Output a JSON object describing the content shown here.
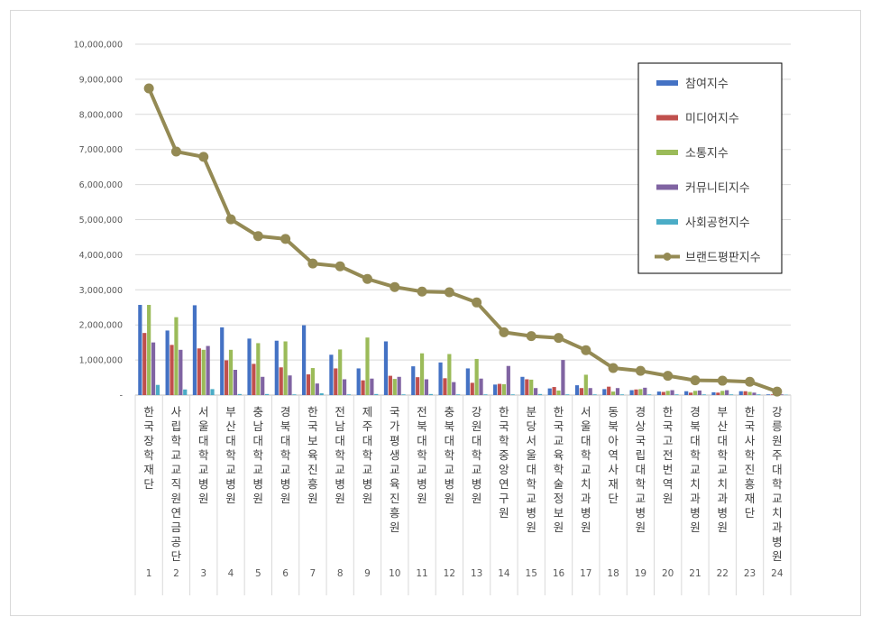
{
  "chart_data": {
    "type": "bar",
    "title": "",
    "xlabel": "",
    "ylabel": "",
    "ylim": [
      0,
      10000000
    ],
    "y_ticks": [
      "-",
      "1,000,000",
      "2,000,000",
      "3,000,000",
      "4,000,000",
      "5,000,000",
      "6,000,000",
      "7,000,000",
      "8,000,000",
      "9,000,000",
      "10,000,000"
    ],
    "grid": true,
    "legend_position": "top-right",
    "categories": [
      {
        "rank": "1",
        "name": "한국장학재단"
      },
      {
        "rank": "2",
        "name": "사립학교교직원연금공단"
      },
      {
        "rank": "3",
        "name": "서울대학교병원"
      },
      {
        "rank": "4",
        "name": "부산대학교병원"
      },
      {
        "rank": "5",
        "name": "충남대학교병원"
      },
      {
        "rank": "6",
        "name": "경북대학교병원"
      },
      {
        "rank": "7",
        "name": "한국보육진흥원"
      },
      {
        "rank": "8",
        "name": "전남대학교병원"
      },
      {
        "rank": "9",
        "name": "제주대학교병원"
      },
      {
        "rank": "10",
        "name": "국가평생교육진흥원"
      },
      {
        "rank": "11",
        "name": "전북대학교병원"
      },
      {
        "rank": "12",
        "name": "충북대학교병원"
      },
      {
        "rank": "13",
        "name": "강원대학교병원"
      },
      {
        "rank": "14",
        "name": "한국학중앙연구원"
      },
      {
        "rank": "15",
        "name": "분당서울대학교병원"
      },
      {
        "rank": "16",
        "name": "한국교육학술정보원"
      },
      {
        "rank": "17",
        "name": "서울대학교치과병원"
      },
      {
        "rank": "18",
        "name": "동북아역사재단"
      },
      {
        "rank": "19",
        "name": "경상국립대학교병원"
      },
      {
        "rank": "20",
        "name": "한국고전번역원"
      },
      {
        "rank": "21",
        "name": "경북대학교치과병원"
      },
      {
        "rank": "22",
        "name": "부산대학교치과병원"
      },
      {
        "rank": "23",
        "name": "한국사학진흥재단"
      },
      {
        "rank": "24",
        "name": "강릉원주대학교치과병원"
      }
    ],
    "series": [
      {
        "name": "참여지수",
        "type": "bar",
        "color": "#4472c4",
        "values": [
          2570000,
          1840000,
          2560000,
          1930000,
          1610000,
          1550000,
          1990000,
          1150000,
          760000,
          1530000,
          820000,
          930000,
          760000,
          300000,
          520000,
          190000,
          280000,
          170000,
          140000,
          100000,
          110000,
          80000,
          110000,
          20000
        ]
      },
      {
        "name": "미디어지수",
        "type": "bar",
        "color": "#c0504d",
        "values": [
          1770000,
          1430000,
          1330000,
          990000,
          890000,
          790000,
          590000,
          760000,
          420000,
          550000,
          510000,
          480000,
          350000,
          320000,
          450000,
          230000,
          200000,
          240000,
          160000,
          90000,
          70000,
          70000,
          110000,
          20000
        ]
      },
      {
        "name": "소통지수",
        "type": "bar",
        "color": "#9bbb59",
        "values": [
          2570000,
          2220000,
          1290000,
          1290000,
          1480000,
          1530000,
          770000,
          1300000,
          1640000,
          460000,
          1190000,
          1170000,
          1030000,
          310000,
          440000,
          130000,
          580000,
          100000,
          170000,
          120000,
          120000,
          120000,
          90000,
          10000
        ]
      },
      {
        "name": "커뮤니티지수",
        "type": "bar",
        "color": "#8064a2",
        "values": [
          1500000,
          1290000,
          1400000,
          720000,
          520000,
          560000,
          330000,
          450000,
          470000,
          520000,
          450000,
          370000,
          470000,
          830000,
          200000,
          1000000,
          200000,
          200000,
          210000,
          140000,
          130000,
          140000,
          70000,
          20000
        ]
      },
      {
        "name": "사회공헌지수",
        "type": "bar",
        "color": "#4bacc6",
        "values": [
          290000,
          160000,
          170000,
          30000,
          30000,
          20000,
          50000,
          20000,
          30000,
          20000,
          30000,
          20000,
          20000,
          20000,
          30000,
          20000,
          20000,
          20000,
          20000,
          20000,
          20000,
          20000,
          20000,
          10000
        ]
      },
      {
        "name": "브랜드평판지수",
        "type": "line",
        "color": "#948a54",
        "values": [
          8740000,
          6940000,
          6790000,
          5010000,
          4530000,
          4450000,
          3750000,
          3670000,
          3310000,
          3080000,
          2950000,
          2930000,
          2640000,
          1790000,
          1680000,
          1630000,
          1280000,
          770000,
          690000,
          550000,
          420000,
          410000,
          380000,
          100000
        ]
      }
    ]
  }
}
